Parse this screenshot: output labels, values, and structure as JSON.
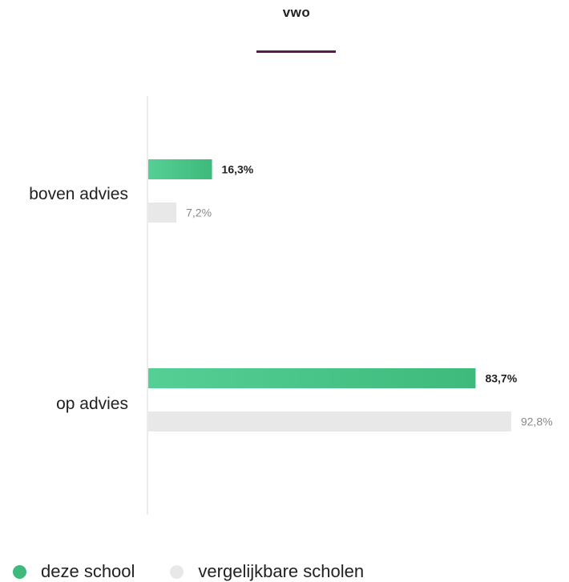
{
  "tab": {
    "label": "vwo",
    "underline_color": "#5c1a4e"
  },
  "colors": {
    "school": "#3dba7c",
    "comparison": "#e8e8e8",
    "school_label": "#222222",
    "comparison_label": "#888888",
    "axis": "#e6e6e6"
  },
  "chart_data": {
    "type": "bar",
    "orientation": "horizontal",
    "categories": [
      "boven advies",
      "op advies"
    ],
    "series": [
      {
        "name": "deze school",
        "values": [
          16.3,
          83.7
        ],
        "labels": [
          "16,3%",
          "83,7%"
        ]
      },
      {
        "name": "vergelijkbare scholen",
        "values": [
          7.2,
          92.8
        ],
        "labels": [
          "7,2%",
          "92,8%"
        ]
      }
    ],
    "xlim": [
      0,
      100
    ],
    "grid": false,
    "legend": "bottom-left"
  },
  "legend": {
    "items": [
      {
        "label": "deze school",
        "color": "#3dba7c"
      },
      {
        "label": "vergelijkbare scholen",
        "color": "#e8e8e8"
      }
    ]
  }
}
